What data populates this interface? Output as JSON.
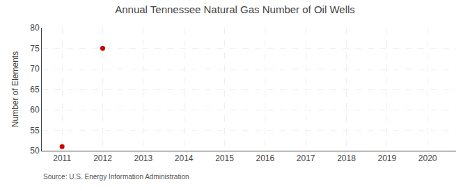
{
  "chart_data": {
    "type": "scatter",
    "title": "Annual Tennessee Natural Gas Number of Oil Wells",
    "ylabel": "Number of Elements",
    "annotations": [
      "Source: U.S. Energy Information Administration"
    ],
    "x": [
      2011,
      2012
    ],
    "values": [
      51,
      75
    ],
    "color": "#cc0000",
    "marker": "circle",
    "xlim": [
      2010.5,
      2020.7
    ],
    "ylim": [
      50,
      80
    ],
    "xticks": [
      2011,
      2012,
      2013,
      2014,
      2015,
      2016,
      2017,
      2018,
      2019,
      2020
    ],
    "yticks": [
      50,
      55,
      60,
      65,
      70,
      75,
      80
    ],
    "grid": true
  }
}
